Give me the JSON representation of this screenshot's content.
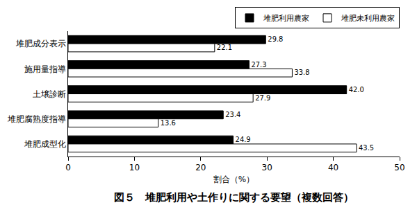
{
  "chart_data": {
    "type": "bar",
    "orientation": "horizontal",
    "title": "図５　堆肥利用や土作りに関する要望（複数回答）",
    "x_label": "割合（%）",
    "categories": [
      "堆肥成分表示",
      "施用量指導",
      "土壌診断",
      "堆肥腐熟度指導",
      "堆肥成型化"
    ],
    "series": [
      {
        "name": "堆肥利用農家",
        "color": "#000000",
        "values": [
          29.8,
          27.3,
          42.0,
          23.4,
          24.9
        ],
        "value_labels": [
          "29.8",
          "27.3",
          "42.0",
          "23.4",
          "24.9"
        ]
      },
      {
        "name": "堆肥未利用農家",
        "color": "#ffffff",
        "values": [
          22.1,
          33.8,
          27.9,
          13.6,
          43.5
        ],
        "value_labels": [
          "22.1",
          "33.8",
          "27.9",
          "13.6",
          "43.5"
        ]
      }
    ],
    "xlim": [
      0,
      50
    ],
    "xticks": [
      0,
      10,
      20,
      30,
      40,
      50
    ],
    "grid": false,
    "legend": "top right",
    "data_labels": true
  }
}
